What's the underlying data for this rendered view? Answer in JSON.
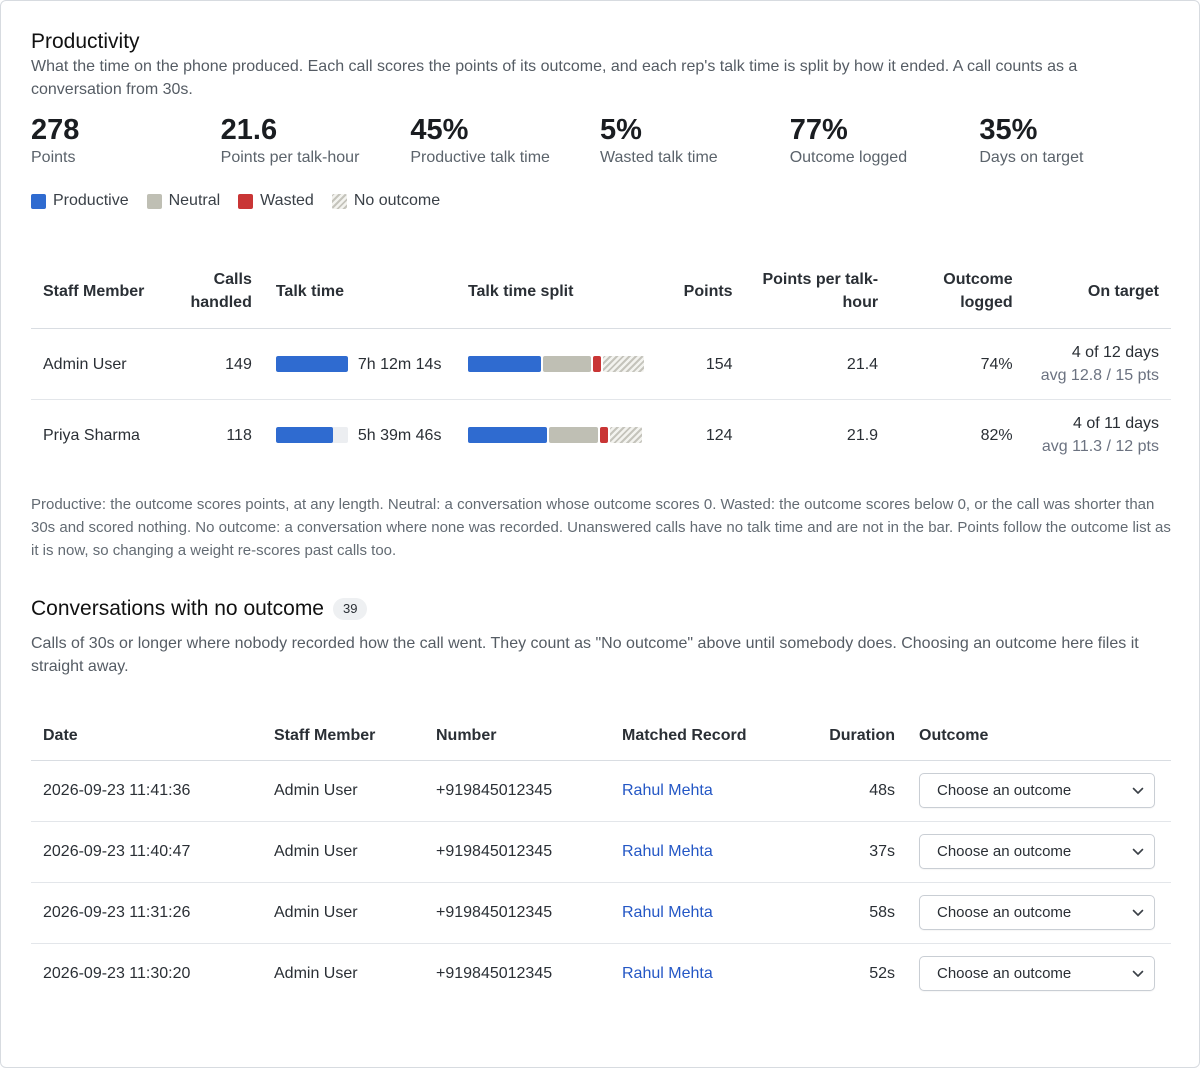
{
  "header": {
    "title": "Productivity",
    "description": "What the time on the phone produced. Each call scores the points of its outcome, and each rep's talk time is split by how it ended. A call counts as a conversation from 30s."
  },
  "kpis": [
    {
      "value": "278",
      "label": "Points"
    },
    {
      "value": "21.6",
      "label": "Points per talk-hour"
    },
    {
      "value": "45%",
      "label": "Productive talk time"
    },
    {
      "value": "5%",
      "label": "Wasted talk time"
    },
    {
      "value": "77%",
      "label": "Outcome logged"
    },
    {
      "value": "35%",
      "label": "Days on target"
    }
  ],
  "legend": [
    {
      "label": "Productive",
      "color": "#2f6bd0"
    },
    {
      "label": "Neutral",
      "color": "#bfbfb4"
    },
    {
      "label": "Wasted",
      "color": "#c93535"
    },
    {
      "label": "No outcome",
      "color": "hatched"
    }
  ],
  "staff_table": {
    "headers": {
      "staff_member": "Staff Member",
      "calls_handled": "Calls handled",
      "talk_time": "Talk time",
      "talk_time_split": "Talk time split",
      "points": "Points",
      "points_per_talk_hour": "Points per talk-hour",
      "outcome_logged": "Outcome logged",
      "on_target": "On target"
    },
    "rows": [
      {
        "name": "Admin User",
        "calls": "149",
        "talk_time": "7h 12m 14s",
        "talk_time_fraction": 1.0,
        "split": {
          "productive": 0.42,
          "neutral": 0.27,
          "wasted": 0.05,
          "no_outcome": 0.23
        },
        "points": "154",
        "pph": "21.4",
        "outcome_logged": "74%",
        "on_target": "4 of 12 days",
        "on_target_sub": "avg 12.8 / 15 pts"
      },
      {
        "name": "Priya Sharma",
        "calls": "118",
        "talk_time": "5h 39m 46s",
        "talk_time_fraction": 0.79,
        "split": {
          "productive": 0.45,
          "neutral": 0.28,
          "wasted": 0.05,
          "no_outcome": 0.18
        },
        "points": "124",
        "pph": "21.9",
        "outcome_logged": "82%",
        "on_target": "4 of 11 days",
        "on_target_sub": "avg 11.3 / 12 pts"
      }
    ]
  },
  "note": "Productive: the outcome scores points, at any length. Neutral: a conversation whose outcome scores 0. Wasted: the outcome scores below 0, or the call was shorter than 30s and scored nothing. No outcome: a conversation where none was recorded. Unanswered calls have no talk time and are not in the bar. Points follow the outcome list as it is now, so changing a weight re-scores past calls too.",
  "conversations": {
    "title": "Conversations with no outcome",
    "count": "39",
    "description": "Calls of 30s or longer where nobody recorded how the call went. They count as \"No outcome\" above until somebody does. Choosing an outcome here files it straight away.",
    "headers": {
      "date": "Date",
      "staff_member": "Staff Member",
      "number": "Number",
      "matched_record": "Matched Record",
      "duration": "Duration",
      "outcome": "Outcome"
    },
    "rows": [
      {
        "date": "2026-09-23 11:41:36",
        "staff": "Admin User",
        "number": "+919845012345",
        "record": "Rahul Mehta",
        "duration": "48s",
        "outcome": "Choose an outcome"
      },
      {
        "date": "2026-09-23 11:40:47",
        "staff": "Admin User",
        "number": "+919845012345",
        "record": "Rahul Mehta",
        "duration": "37s",
        "outcome": "Choose an outcome"
      },
      {
        "date": "2026-09-23 11:31:26",
        "staff": "Admin User",
        "number": "+919845012345",
        "record": "Rahul Mehta",
        "duration": "58s",
        "outcome": "Choose an outcome"
      },
      {
        "date": "2026-09-23 11:30:20",
        "staff": "Admin User",
        "number": "+919845012345",
        "record": "Rahul Mehta",
        "duration": "52s",
        "outcome": "Choose an outcome"
      }
    ]
  }
}
